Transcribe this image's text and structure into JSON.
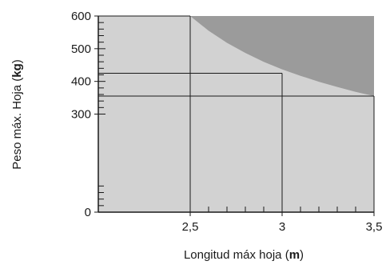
{
  "chart_data": {
    "type": "area",
    "xlabel": "Longitud máx hoja",
    "xlabel_unit": "m",
    "ylabel": "Peso máx. Hoja",
    "ylabel_unit": "kg",
    "xlim": [
      2.0,
      3.5
    ],
    "ylim": [
      0,
      600
    ],
    "x_ticks": [
      {
        "value": 2.5,
        "label": "2,5"
      },
      {
        "value": 3.0,
        "label": "3"
      },
      {
        "value": 3.5,
        "label": "3,5"
      }
    ],
    "x_minor_ticks": [
      2.6,
      2.7,
      2.8,
      2.9,
      3.1,
      3.2,
      3.3,
      3.4
    ],
    "y_ticks": [
      {
        "value": 0,
        "label": "0"
      },
      {
        "value": 300,
        "label": "300"
      },
      {
        "value": 400,
        "label": "400"
      },
      {
        "value": 500,
        "label": "500"
      },
      {
        "value": 600,
        "label": "600"
      }
    ],
    "y_minor_ticks": [
      20,
      40,
      60,
      80,
      320,
      340,
      360,
      380,
      420,
      440,
      460,
      480,
      520,
      540,
      560,
      580
    ],
    "allowed_region_boundary": {
      "x": [
        2.5,
        2.6,
        2.7,
        2.8,
        2.9,
        3.0,
        3.1,
        3.2,
        3.3,
        3.4,
        3.5
      ],
      "y": [
        600,
        555,
        518,
        487,
        460,
        437,
        417,
        399,
        383,
        368,
        355
      ]
    },
    "reference_points": [
      {
        "x": 2.5,
        "y": 600
      },
      {
        "x": 3.0,
        "y": 425
      },
      {
        "x": 3.5,
        "y": 355
      }
    ],
    "colors": {
      "allowed": "#d2d2d2",
      "not_allowed": "#9b9b9b",
      "lines": "#1a1a1a"
    }
  }
}
